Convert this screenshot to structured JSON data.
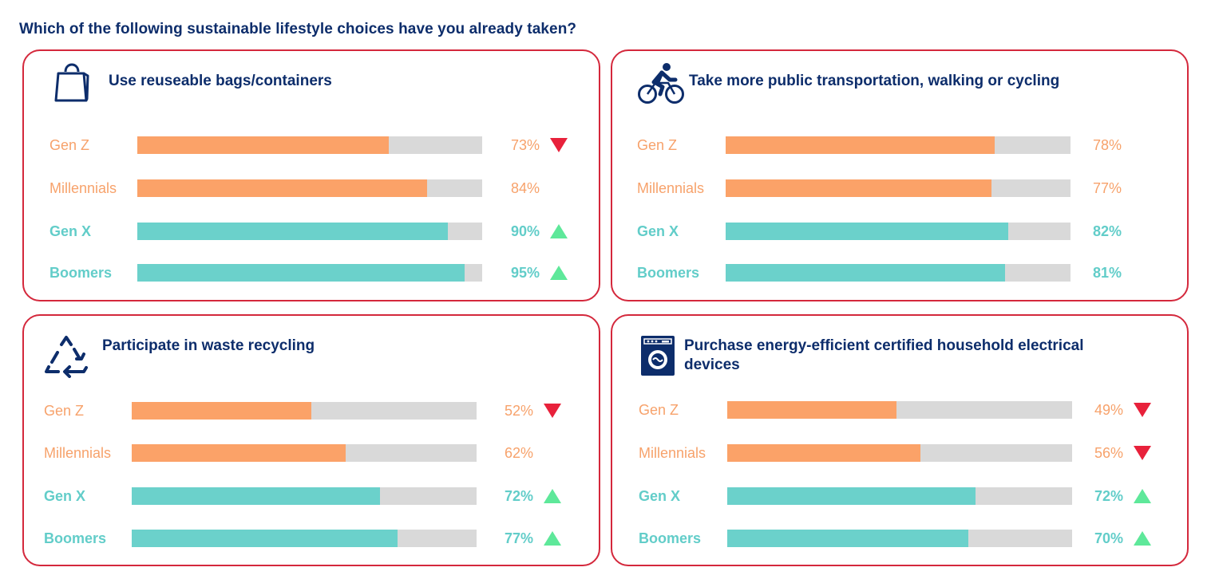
{
  "title": "Which of the following sustainable lifestyle choices have you already taken?",
  "colors": {
    "accent_border": "#d4283c",
    "heading": "#0d2d6b",
    "orange": "#fba268",
    "teal": "#6bd1cb",
    "track": "#d9d9d9",
    "up": "#5ee89a",
    "down": "#e8213b"
  },
  "chart_data": [
    {
      "type": "bar",
      "orientation": "horizontal",
      "title": "Use reuseable bags/containers",
      "icon": "shopping-bag-icon",
      "categories": [
        "Gen Z",
        "Millennials",
        "Gen X",
        "Boomers"
      ],
      "values": [
        73,
        84,
        90,
        95
      ],
      "value_labels": [
        "73%",
        "84%",
        "90%",
        "95%"
      ],
      "trends": [
        "down",
        "none",
        "up",
        "up"
      ],
      "xlim": [
        0,
        100
      ]
    },
    {
      "type": "bar",
      "orientation": "horizontal",
      "title": "Take more public transportation, walking or cycling",
      "icon": "cyclist-icon",
      "categories": [
        "Gen Z",
        "Millennials",
        "Gen X",
        "Boomers"
      ],
      "values": [
        78,
        77,
        82,
        81
      ],
      "value_labels": [
        "78%",
        "77%",
        "82%",
        "81%"
      ],
      "trends": [
        "none",
        "none",
        "none",
        "none"
      ],
      "xlim": [
        0,
        100
      ]
    },
    {
      "type": "bar",
      "orientation": "horizontal",
      "title": "Participate in waste recycling",
      "icon": "recycle-icon",
      "categories": [
        "Gen Z",
        "Millennials",
        "Gen X",
        "Boomers"
      ],
      "values": [
        52,
        62,
        72,
        77
      ],
      "value_labels": [
        "52%",
        "62%",
        "72%",
        "77%"
      ],
      "trends": [
        "down",
        "none",
        "up",
        "up"
      ],
      "xlim": [
        0,
        100
      ]
    },
    {
      "type": "bar",
      "orientation": "horizontal",
      "title": "Purchase energy-efficient certified household electrical devices",
      "icon": "washing-machine-icon",
      "categories": [
        "Gen Z",
        "Millennials",
        "Gen X",
        "Boomers"
      ],
      "values": [
        49,
        56,
        72,
        70
      ],
      "value_labels": [
        "49%",
        "56%",
        "72%",
        "70%"
      ],
      "trends": [
        "down",
        "down",
        "up",
        "up"
      ],
      "xlim": [
        0,
        100
      ]
    }
  ]
}
